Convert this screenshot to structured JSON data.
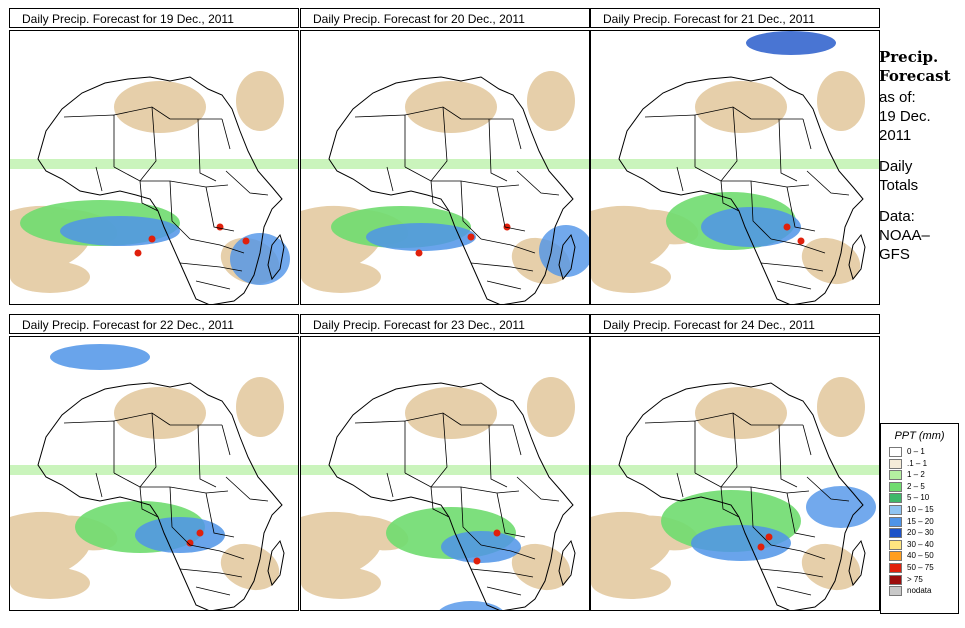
{
  "panels": [
    {
      "title": "Daily Precip. Forecast for  19 Dec., 2011"
    },
    {
      "title": "Daily Precip. Forecast for  20 Dec., 2011"
    },
    {
      "title": "Daily Precip. Forecast for  21 Dec., 2011"
    },
    {
      "title": "Daily Precip. Forecast for  22 Dec., 2011"
    },
    {
      "title": "Daily Precip. Forecast for  23 Dec., 2011"
    },
    {
      "title": "Daily Precip. Forecast for  24 Dec., 2011"
    }
  ],
  "side": {
    "heading1": "Precip.",
    "heading2": "Forecast",
    "asof": "as of:",
    "date1": "19 Dec.",
    "date2": "2011",
    "daily1": "Daily",
    "daily2": "Totals",
    "data1": "Data:",
    "data2": "NOAA–",
    "data3": "GFS"
  },
  "legend": {
    "title": "PPT (mm)",
    "items": [
      {
        "label": "0 – 1",
        "color": "#ffffff"
      },
      {
        "label": ".1 – 1",
        "color": "#f5ecd9"
      },
      {
        "label": "1 – 2",
        "color": "#b4f0a0"
      },
      {
        "label": "2 – 5",
        "color": "#6fdc6f"
      },
      {
        "label": "5 – 10",
        "color": "#3fb86a"
      },
      {
        "label": "10 – 15",
        "color": "#8fc4f2"
      },
      {
        "label": "15 – 20",
        "color": "#4f94e8"
      },
      {
        "label": "20 – 30",
        "color": "#1c52c8"
      },
      {
        "label": "30 – 40",
        "color": "#ffe680"
      },
      {
        "label": "40 – 50",
        "color": "#ff9e1e"
      },
      {
        "label": "50 – 75",
        "color": "#e0200c"
      },
      {
        "label": "> 75",
        "color": "#9c0d0d"
      },
      {
        "label": "nodata",
        "color": "#c8c8c8"
      }
    ]
  },
  "colors": {
    "dry": "#e6cfaa",
    "light": "#b4f0a0",
    "moderate": "#6fdc6f",
    "wet": "#4f94e8",
    "heavy": "#1c52c8",
    "extreme": "#e0200c"
  }
}
